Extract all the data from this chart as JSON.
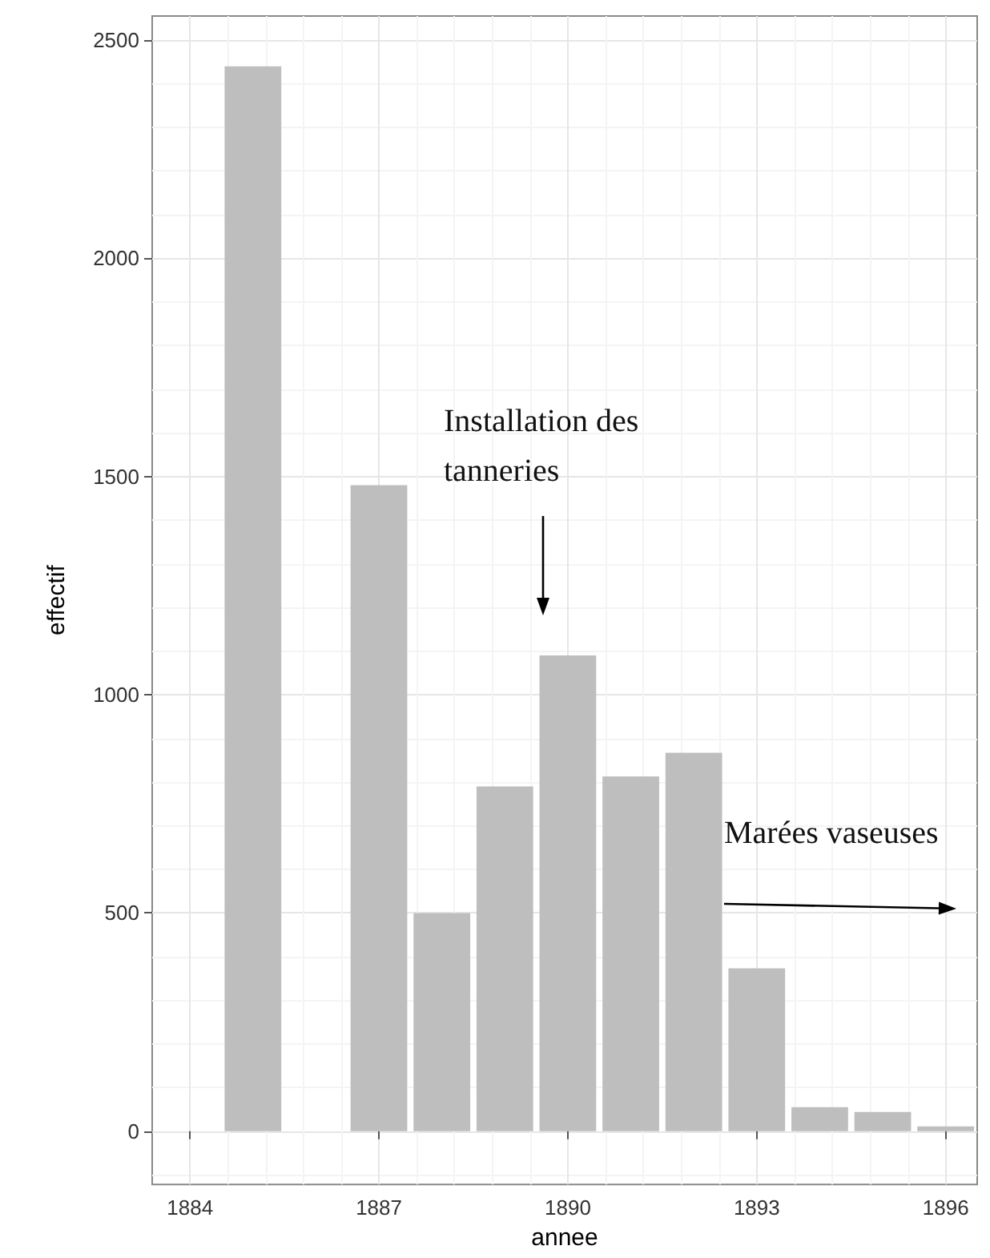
{
  "chart_data": {
    "type": "bar",
    "xlabel": "annee",
    "ylabel": "effectif",
    "x": [
      1885,
      1887,
      1888,
      1889,
      1890,
      1891,
      1892,
      1893,
      1894,
      1895,
      1896
    ],
    "values": [
      2440,
      1480,
      500,
      790,
      1090,
      813,
      867,
      373,
      55,
      44,
      11
    ],
    "color": "#bebebe",
    "xlim": [
      1883.4,
      1896.5
    ],
    "xticks": [
      1884,
      1887,
      1890,
      1893,
      1896
    ],
    "ylim": [
      -122,
      2555
    ],
    "yticks": [
      0,
      500,
      1000,
      1500,
      2000,
      2500
    ],
    "grid": true,
    "annotations": [
      "Installation des tanneries",
      "Marées vaseuses"
    ]
  }
}
